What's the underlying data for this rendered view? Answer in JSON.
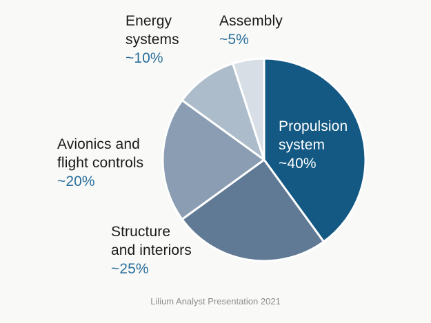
{
  "chart_data": {
    "type": "pie",
    "slices": [
      {
        "label_lines": [
          "Propulsion",
          "system"
        ],
        "value_label": "~40%",
        "value": 40,
        "color": "#135983"
      },
      {
        "label_lines": [
          "Structure",
          "and interiors"
        ],
        "value_label": "~25%",
        "value": 25,
        "color": "#607a96"
      },
      {
        "label_lines": [
          "Avionics and",
          "flight controls"
        ],
        "value_label": "~20%",
        "value": 20,
        "color": "#8a9db3"
      },
      {
        "label_lines": [
          "Energy",
          "systems"
        ],
        "value_label": "~10%",
        "value": 10,
        "color": "#adbccb"
      },
      {
        "label_lines": [
          "Assembly"
        ],
        "value_label": "~5%",
        "value": 5,
        "color": "#d8dee6"
      }
    ]
  },
  "source": "Lilium Analyst Presentation 2021"
}
